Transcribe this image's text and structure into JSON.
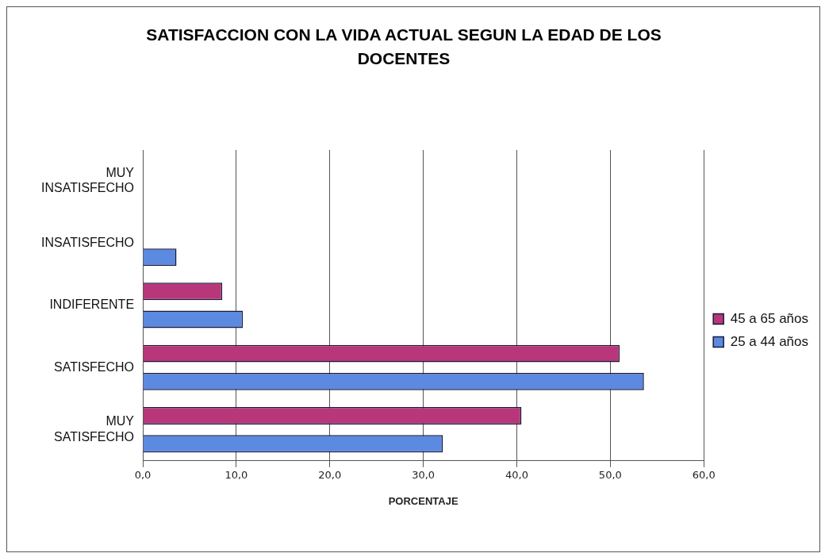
{
  "chart_data": {
    "type": "bar",
    "orientation": "horizontal",
    "title": "SATISFACCION CON LA VIDA ACTUAL SEGUN LA EDAD DE LOS DOCENTES",
    "xlabel": "PORCENTAJE",
    "categories": [
      "MUY INSATISFECHO",
      "INSATISFECHO",
      "INDIFERENTE",
      "SATISFECHO",
      "MUY SATISFECHO"
    ],
    "series": [
      {
        "name": "45 a 65 años",
        "color": "#b8377a",
        "values": [
          0,
          0,
          8.5,
          51.0,
          40.5
        ]
      },
      {
        "name": "25 a 44 años",
        "color": "#5b8ae0",
        "values": [
          0,
          3.6,
          10.7,
          53.6,
          32.1
        ]
      }
    ],
    "xlim": [
      0,
      60
    ],
    "xticks": [
      {
        "value": 0,
        "label": "0,0"
      },
      {
        "value": 10,
        "label": "10,0"
      },
      {
        "value": 20,
        "label": "20,0"
      },
      {
        "value": 30,
        "label": "30,0"
      },
      {
        "value": 40,
        "label": "40,0"
      },
      {
        "value": 50,
        "label": "50,0"
      },
      {
        "value": 60,
        "label": "60,0"
      }
    ],
    "grid": "x",
    "legend": "right"
  }
}
